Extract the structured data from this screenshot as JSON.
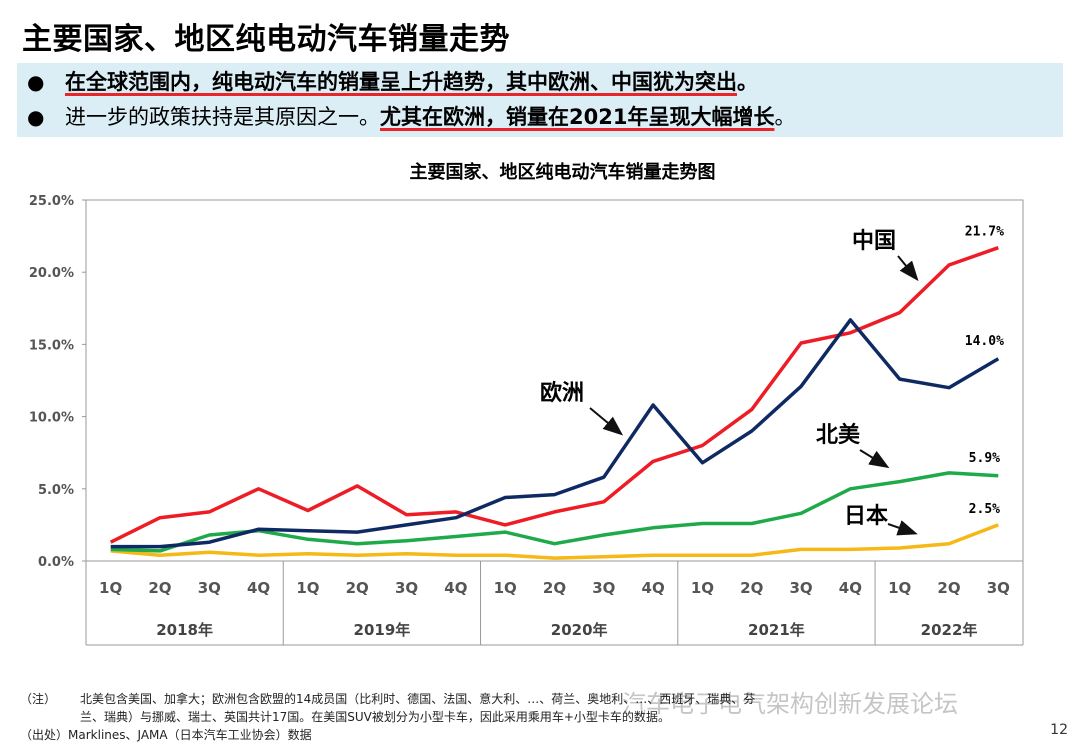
{
  "page": {
    "title": "主要国家、地区纯电动汽车销量走势",
    "page_number": "12"
  },
  "bullets": [
    {
      "dot": "●",
      "part1": "在全球范围内，纯电动汽车的销量呈上升趋势，其中欧洲、中国犹为突出",
      "part2": "。"
    },
    {
      "dot": "●",
      "part1": "进一步的政策扶持是其原因之一。",
      "part2": "尤其在欧洲，销量在2021年呈现大幅增长",
      "part3": "。"
    }
  ],
  "chart_data": {
    "type": "line",
    "title": "主要国家、地区纯电动汽车销量走势图",
    "xlabel": "",
    "ylabel": "",
    "ylim": [
      0,
      25
    ],
    "y_ticks": [
      "0.0%",
      "5.0%",
      "10.0%",
      "15.0%",
      "20.0%",
      "25.0%"
    ],
    "quarters": [
      "1Q",
      "2Q",
      "3Q",
      "4Q",
      "1Q",
      "2Q",
      "3Q",
      "4Q",
      "1Q",
      "2Q",
      "3Q",
      "4Q",
      "1Q",
      "2Q",
      "3Q",
      "4Q",
      "1Q",
      "2Q",
      "3Q"
    ],
    "years": [
      {
        "label": "2018年",
        "count": 4
      },
      {
        "label": "2019年",
        "count": 4
      },
      {
        "label": "2020年",
        "count": 4
      },
      {
        "label": "2021年",
        "count": 4
      },
      {
        "label": "2022年",
        "count": 3
      }
    ],
    "series": [
      {
        "name": "欧洲",
        "color": "#0f2a63",
        "values": [
          1.0,
          1.0,
          1.3,
          2.2,
          2.1,
          2.0,
          2.5,
          3.0,
          4.4,
          4.6,
          5.8,
          10.8,
          6.8,
          9.0,
          12.1,
          16.7,
          12.6,
          12.0,
          14.0
        ],
        "end_label": "14.0%"
      },
      {
        "name": "中国",
        "color": "#ee1c25",
        "values": [
          1.3,
          3.0,
          3.4,
          5.0,
          3.5,
          5.2,
          3.2,
          3.4,
          2.5,
          3.4,
          4.1,
          6.9,
          8.0,
          10.5,
          15.1,
          15.8,
          17.2,
          20.5,
          21.7
        ],
        "end_label": "21.7%"
      },
      {
        "name": "北美",
        "color": "#1faa4a",
        "values": [
          0.8,
          0.7,
          1.8,
          2.1,
          1.5,
          1.2,
          1.4,
          1.7,
          2.0,
          1.2,
          1.8,
          2.3,
          2.6,
          2.6,
          3.3,
          5.0,
          5.5,
          6.1,
          5.9
        ],
        "end_label": "5.9%"
      },
      {
        "name": "日本",
        "color": "#f6b817",
        "values": [
          0.7,
          0.4,
          0.6,
          0.4,
          0.5,
          0.4,
          0.5,
          0.4,
          0.4,
          0.2,
          0.3,
          0.4,
          0.4,
          0.4,
          0.8,
          0.8,
          0.9,
          1.2,
          2.5
        ],
        "end_label": "2.5%"
      }
    ]
  },
  "footnotes": {
    "note_label": "（注）",
    "note_line1": "北美包含美国、加拿大；欧洲包含欧盟的14成员国（比利时、德国、法国、意大利、…、荷兰、奥地利、…、西班牙、瑞典、芬",
    "note_line2": "兰、瑞典）与挪威、瑞士、英国共计17国。在美国SUV被划分为小型卡车，因此采用乘用车+小型卡车的数据。",
    "source_label": "（出处）",
    "source_text": "Marklines、JAMA（日本汽车工业协会）数据"
  },
  "watermark": "汽车电子电气架构创新发展论坛"
}
